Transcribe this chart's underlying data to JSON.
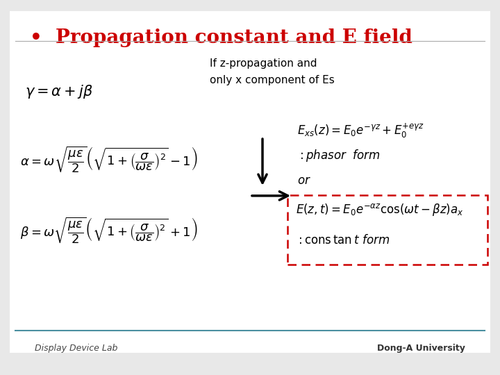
{
  "title": "Propagation constant and E field",
  "title_bullet": "•",
  "title_color": "#cc0000",
  "bg_color": "#e8e8e8",
  "slide_bg": "#ffffff",
  "red_dashed_box_color": "#cc0000",
  "footer_text_left": "Display Device Lab",
  "footer_text_right": "Dong-A University",
  "text_if_line1": "If z-propagation and",
  "text_if_line2": "only x component of Es"
}
